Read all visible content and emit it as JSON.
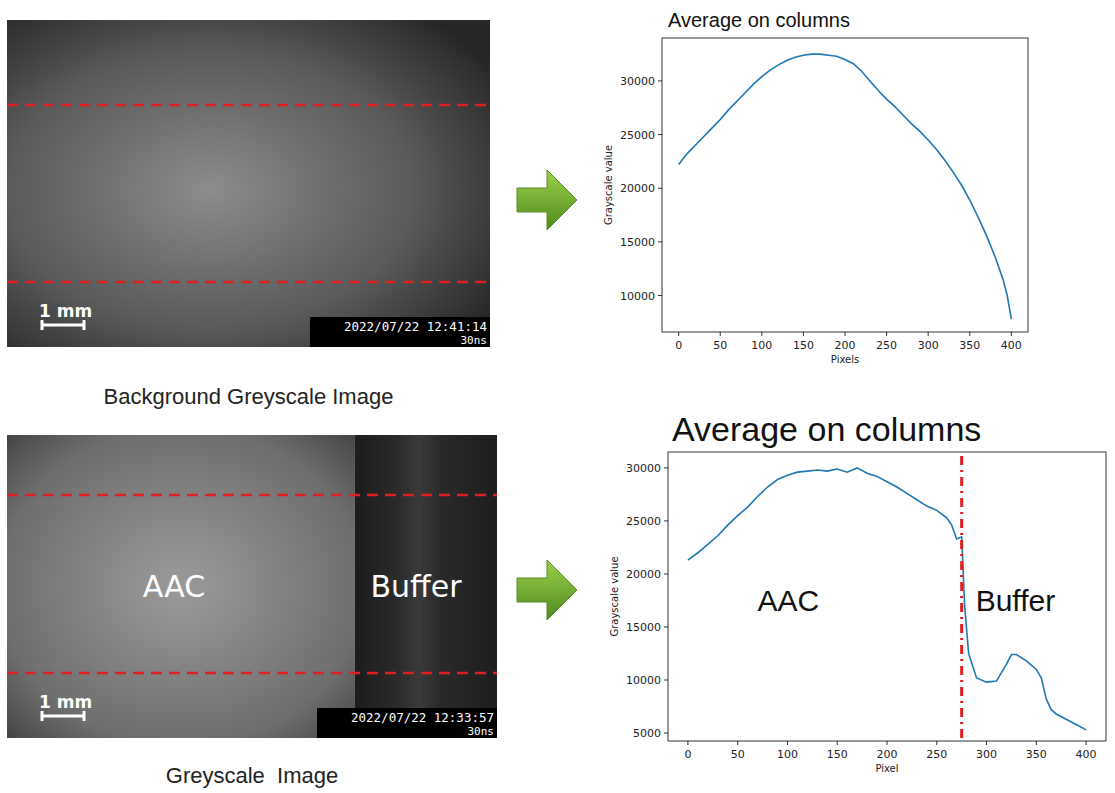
{
  "images": [
    {
      "caption": "Background Greyscale Image",
      "scale_bar": "1 mm",
      "timestamp": "2022/07/22 12:41:14",
      "exposure": "30ns"
    },
    {
      "caption": "Greyscale  Image",
      "regions": [
        "AAC",
        "Buffer"
      ],
      "scale_bar": "1 mm",
      "timestamp": "2022/07/22 12:33:57",
      "exposure": "30ns"
    }
  ],
  "chart_data": [
    {
      "type": "line",
      "title": "Average on columns",
      "x_label": "Pixels",
      "y_label": "Grayscale value",
      "color": "#1f77b4",
      "grid": false,
      "x": [
        0,
        10,
        20,
        30,
        40,
        50,
        60,
        70,
        80,
        90,
        100,
        110,
        120,
        130,
        140,
        150,
        160,
        170,
        180,
        190,
        200,
        210,
        220,
        230,
        240,
        250,
        260,
        270,
        280,
        290,
        300,
        310,
        320,
        330,
        340,
        350,
        360,
        370,
        380,
        390,
        395,
        400
      ],
      "values": [
        22200,
        23200,
        24000,
        24800,
        25600,
        26400,
        27300,
        28100,
        28900,
        29700,
        30400,
        31000,
        31500,
        31900,
        32200,
        32400,
        32500,
        32500,
        32400,
        32300,
        32000,
        31600,
        30900,
        30000,
        29100,
        28300,
        27600,
        26800,
        26000,
        25300,
        24500,
        23600,
        22600,
        21500,
        20300,
        18900,
        17300,
        15600,
        13700,
        11500,
        10000,
        7800
      ],
      "xlim": [
        -20,
        420
      ],
      "ylim": [
        6600,
        34000
      ],
      "xticks": [
        0,
        50,
        100,
        150,
        200,
        250,
        300,
        350,
        400
      ],
      "yticks": [
        10000,
        15000,
        20000,
        25000,
        30000
      ]
    },
    {
      "type": "line",
      "title": "Average on columns",
      "x_label": "Pixel",
      "y_label": "Grayscale value",
      "color": "#1f77b4",
      "grid": false,
      "x": [
        0,
        10,
        20,
        30,
        40,
        50,
        60,
        70,
        80,
        90,
        100,
        110,
        120,
        130,
        140,
        150,
        160,
        170,
        180,
        190,
        200,
        210,
        220,
        230,
        240,
        250,
        260,
        265,
        270,
        275,
        278,
        282,
        290,
        300,
        310,
        320,
        325,
        330,
        340,
        350,
        355,
        360,
        365,
        370,
        380,
        390,
        400
      ],
      "values": [
        21300,
        22000,
        22800,
        23600,
        24600,
        25500,
        26300,
        27300,
        28200,
        28900,
        29300,
        29600,
        29700,
        29800,
        29700,
        29900,
        29600,
        30000,
        29500,
        29200,
        28700,
        28200,
        27600,
        27000,
        26400,
        26000,
        25300,
        24600,
        23300,
        23500,
        17000,
        12500,
        10200,
        9800,
        9900,
        11500,
        12400,
        12400,
        11800,
        11000,
        10200,
        8200,
        7200,
        6800,
        6300,
        5800,
        5300
      ],
      "xlim": [
        -20,
        420
      ],
      "ylim": [
        4250,
        31500
      ],
      "xticks": [
        0,
        50,
        100,
        150,
        200,
        250,
        300,
        350,
        400
      ],
      "yticks": [
        5000,
        10000,
        15000,
        20000,
        25000,
        30000
      ],
      "annotations": [
        "AAC",
        "Buffer"
      ],
      "boundary_x": 275
    }
  ]
}
